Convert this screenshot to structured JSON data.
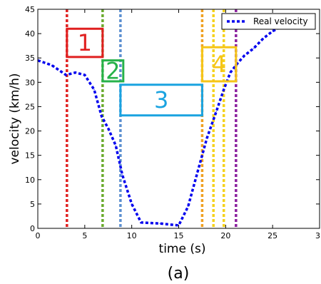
{
  "caption": "(a)",
  "colors": {
    "velocity": "#0000ee",
    "red": "#e02020",
    "green": "#6aaa2c",
    "blue": "#5b8fd0",
    "orange": "#f0a020",
    "yellow": "#f5d21b",
    "purple": "#8b1f9e",
    "box1": "#e02020",
    "box2": "#27b24a",
    "box3": "#1aa3e0",
    "box4": "#f5c518"
  },
  "chart_data": {
    "type": "line",
    "title": "",
    "xlabel": "time (s)",
    "ylabel": "velocity (km/h)",
    "xlim": [
      0,
      30
    ],
    "ylim": [
      0,
      45
    ],
    "xticks": [
      0,
      5,
      10,
      15,
      20,
      25
    ],
    "xtick_labels": [
      "0",
      "5",
      "10",
      "15",
      "20",
      "25"
    ],
    "last_xtick_label": "3",
    "yticks": [
      0,
      5,
      10,
      15,
      20,
      25,
      30,
      35,
      40,
      45
    ],
    "grid": false,
    "legend": {
      "position": "top-right",
      "entries": [
        "Real velocity"
      ]
    },
    "series": [
      {
        "name": "Real velocity",
        "style": "dotted",
        "color_key": "velocity",
        "x": [
          0,
          1.5,
          3,
          4,
          5,
          6,
          6.8,
          7.5,
          8.3,
          9,
          10,
          11,
          13,
          15,
          16,
          17,
          18,
          19,
          19.8,
          20.5,
          21.3,
          22,
          23,
          24,
          25,
          26
        ],
        "y": [
          34.5,
          33.5,
          31.5,
          32,
          31.5,
          28.5,
          23,
          20.5,
          17,
          11,
          5,
          1.2,
          1,
          0.6,
          4.5,
          11.5,
          18.5,
          24,
          28.5,
          32,
          34,
          35.5,
          37,
          39,
          40.5,
          41.5
        ]
      }
    ],
    "vertical_lines": [
      {
        "x": 3.1,
        "color_key": "red"
      },
      {
        "x": 6.9,
        "color_key": "green"
      },
      {
        "x": 8.8,
        "color_key": "blue"
      },
      {
        "x": 17.5,
        "color_key": "orange"
      },
      {
        "x": 18.7,
        "color_key": "yellow"
      },
      {
        "x": 19.8,
        "color_key": "yellow"
      },
      {
        "x": 21.1,
        "color_key": "purple"
      }
    ],
    "phase_boxes": [
      {
        "label": "1",
        "x0": 3.1,
        "x1": 6.9,
        "y0": 35.2,
        "y1": 41,
        "color_key": "box1"
      },
      {
        "label": "2",
        "x0": 6.9,
        "x1": 9.1,
        "y0": 30.2,
        "y1": 34.5,
        "color_key": "box2"
      },
      {
        "label": "3",
        "x0": 8.8,
        "x1": 17.5,
        "y0": 23.2,
        "y1": 29.5,
        "color_key": "box3"
      },
      {
        "label": "4",
        "x0": 17.5,
        "x1": 21.1,
        "y0": 30.2,
        "y1": 37.2,
        "color_key": "box4"
      }
    ]
  }
}
